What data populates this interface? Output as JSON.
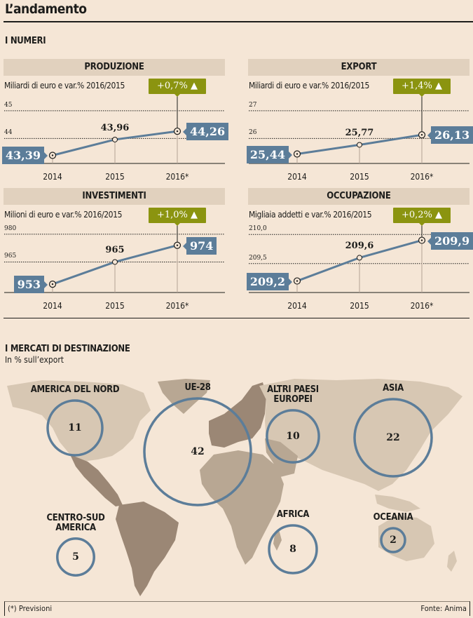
{
  "header": {
    "title": "L’andamento",
    "section": "I NUMERI"
  },
  "colors": {
    "accent_green": "#8b9410",
    "series_blue": "#5c7d99",
    "land_dark": "#9b8775",
    "land_mid": "#b8a793",
    "land_light": "#d7c7b3",
    "background": "#f5e6d6"
  },
  "chart_data": [
    {
      "type": "line",
      "title": "PRODUZIONE",
      "subtitle": "Miliardi di euro e var.% 2016/2015",
      "categories": [
        "2014",
        "2015",
        "2016*"
      ],
      "values": [
        43.39,
        43.96,
        44.26
      ],
      "value_labels": [
        "43,39",
        "43,96",
        "44,26"
      ],
      "change_label": "+0,7% ▲",
      "yticks": [
        44,
        45
      ],
      "ytick_labels": [
        "44",
        "45"
      ],
      "ylim": [
        43.2,
        45.4
      ],
      "grid": true
    },
    {
      "type": "line",
      "title": "EXPORT",
      "subtitle": "Miliardi di euro e var.% 2016/2015",
      "categories": [
        "2014",
        "2015",
        "2016*"
      ],
      "values": [
        25.44,
        25.77,
        26.13
      ],
      "value_labels": [
        "25,44",
        "25,77",
        "26,13"
      ],
      "change_label": "+1,4% ▲",
      "yticks": [
        26,
        27
      ],
      "ytick_labels": [
        "26",
        "27"
      ],
      "ylim": [
        25.2,
        27.4
      ],
      "grid": true
    },
    {
      "type": "line",
      "title": "INVESTIMENTI",
      "subtitle": "Milioni di euro e var.% 2016/2015",
      "categories": [
        "2014",
        "2015",
        "2016*"
      ],
      "values": [
        953,
        965,
        974
      ],
      "value_labels": [
        "953",
        "965",
        "974"
      ],
      "change_label": "+1,0% ▲",
      "yticks": [
        965,
        980
      ],
      "ytick_labels": [
        "965",
        "980"
      ],
      "ylim": [
        950,
        983
      ],
      "grid": true
    },
    {
      "type": "line",
      "title": "OCCUPAZIONE",
      "subtitle": "Migliaia addetti e var.% 2016/2015",
      "categories": [
        "2014",
        "2015",
        "2016*"
      ],
      "values": [
        209.2,
        209.6,
        209.9
      ],
      "value_labels": [
        "209,2",
        "209,6",
        "209,9"
      ],
      "change_label": "+0,2% ▲",
      "yticks": [
        209.5,
        210.0
      ],
      "ytick_labels": [
        "209,5",
        "210,0"
      ],
      "ylim": [
        209.05,
        210.1
      ],
      "grid": true
    },
    {
      "type": "bubble-map",
      "title": "I MERCATI DI DESTINAZIONE",
      "subtitle": "In % sull’export",
      "regions": [
        {
          "name": "AMERICA DEL NORD",
          "value": 11
        },
        {
          "name": "UE-28",
          "value": 42
        },
        {
          "name": "ALTRI PAESI EUROPEI",
          "value": 10
        },
        {
          "name": "ASIA",
          "value": 22
        },
        {
          "name": "CENTRO-SUD AMERICA",
          "value": 5
        },
        {
          "name": "AFRICA",
          "value": 8
        },
        {
          "name": "OCEANIA",
          "value": 2
        }
      ]
    }
  ],
  "map_labels": {
    "AMERICA DEL NORD": [
      "AMERICA DEL NORD"
    ],
    "UE-28": [
      "UE-28"
    ],
    "ALTRI PAESI EUROPEI": [
      "ALTRI PAESI",
      "EUROPEI"
    ],
    "ASIA": [
      "ASIA"
    ],
    "CENTRO-SUD AMERICA": [
      "CENTRO-SUD",
      "AMERICA"
    ],
    "AFRICA": [
      "AFRICA"
    ],
    "OCEANIA": [
      "OCEANIA"
    ]
  },
  "footer": {
    "note": "(*) Previsioni",
    "source": "Fonte: Anima"
  }
}
